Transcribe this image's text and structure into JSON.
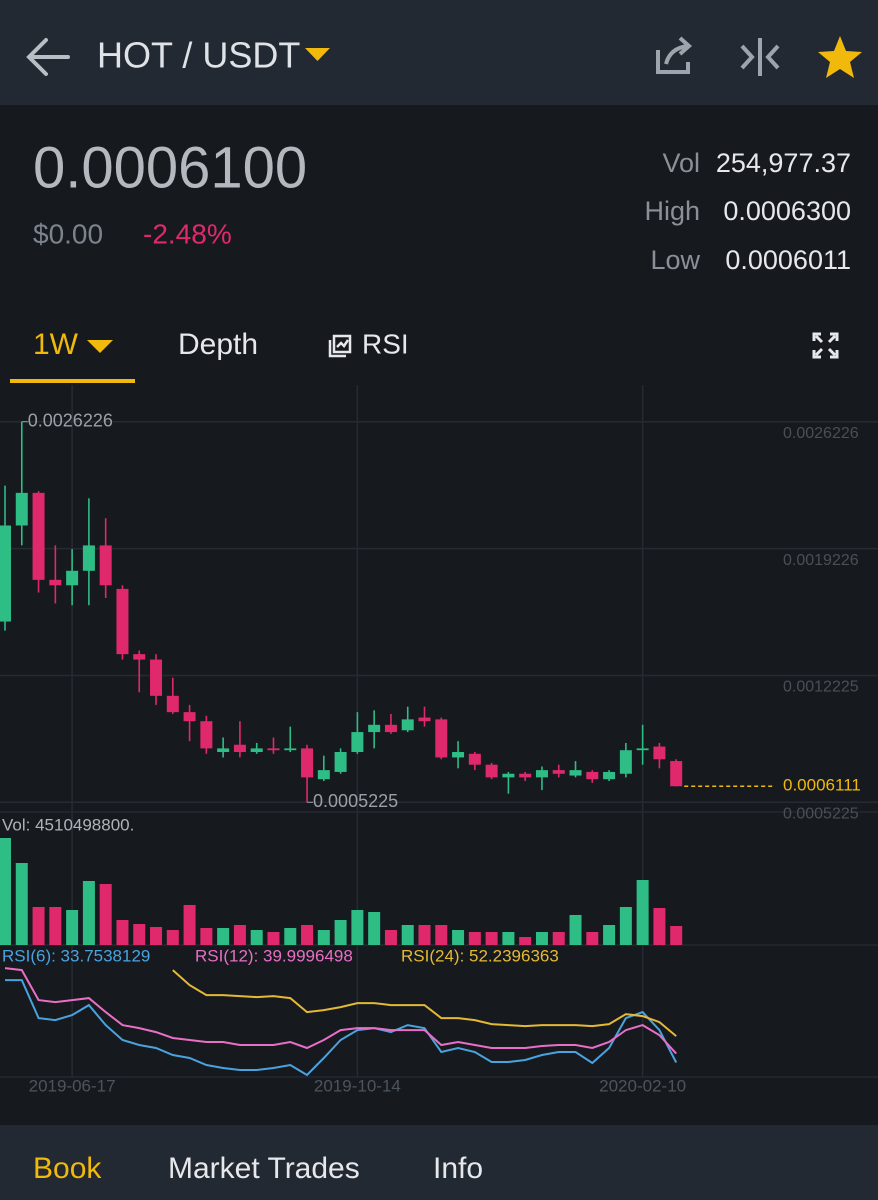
{
  "header": {
    "title": "HOT / USDT"
  },
  "ticker": {
    "price": "0.0006100",
    "fiat": "$0.00",
    "change": "-2.48%",
    "stats": [
      {
        "label": "Vol",
        "value": "254,977.37"
      },
      {
        "label": "High",
        "value": "0.0006300"
      },
      {
        "label": "Low",
        "value": "0.0006011"
      }
    ]
  },
  "tabs": [
    "1W",
    "Depth",
    "RSI"
  ],
  "footer_tabs": [
    "Book",
    "Market Trades",
    "Info"
  ],
  "chart_data": {
    "type": "candlestick",
    "x": [
      null,
      null,
      null,
      null,
      "2019-06-17",
      null,
      null,
      null,
      null,
      null,
      null,
      null,
      null,
      null,
      null,
      null,
      null,
      null,
      null,
      null,
      null,
      "2019-10-14",
      null,
      null,
      null,
      null,
      null,
      null,
      null,
      null,
      null,
      null,
      null,
      null,
      null,
      null,
      null,
      null,
      "2020-02-10",
      null,
      null
    ],
    "open": [
      0.00152,
      0.00205,
      0.00223,
      0.00175,
      0.00172,
      0.0018,
      0.00194,
      0.0017,
      0.00134,
      0.00131,
      0.00111,
      0.00102,
      0.00097,
      0.0008,
      0.00084,
      0.0008,
      0.00082,
      0.00081,
      0.00082,
      0.00065,
      0.00069,
      0.0008,
      0.00091,
      0.00095,
      0.00092,
      0.00099,
      0.00098,
      0.00077,
      0.00079,
      0.00073,
      0.00066,
      0.00068,
      0.00066,
      0.0007,
      0.00067,
      0.00069,
      0.00065,
      0.00068,
      0.00081,
      0.00083,
      0.00075
    ],
    "high": [
      0.00227,
      0.0026226,
      0.00224,
      0.00194,
      0.00192,
      0.0022,
      0.00209,
      0.00172,
      0.00136,
      0.00134,
      0.00121,
      0.00106,
      0.001,
      0.00088,
      0.00097,
      0.00085,
      0.00088,
      0.00094,
      0.00084,
      0.00078,
      0.00082,
      0.00102,
      0.00103,
      0.00101,
      0.00105,
      0.00105,
      0.00099,
      0.00086,
      0.0008,
      0.00074,
      0.00069,
      0.00069,
      0.00072,
      0.00073,
      0.00075,
      0.0007,
      0.0007,
      0.00085,
      0.00095,
      0.00085,
      0.00076
    ],
    "low": [
      0.00147,
      0.00194,
      0.00168,
      0.00162,
      0.00161,
      0.00161,
      0.00165,
      0.00131,
      0.00113,
      0.00106,
      0.00101,
      0.00086,
      0.00079,
      0.00077,
      0.00077,
      0.00079,
      0.00079,
      0.0008,
      0.0005225,
      0.00064,
      0.00068,
      0.00079,
      0.00082,
      0.0009,
      0.00091,
      0.00094,
      0.00076,
      0.00071,
      0.0007,
      0.00065,
      0.00057,
      0.00064,
      0.00059,
      0.00066,
      0.00066,
      0.00063,
      0.00064,
      0.00066,
      0.00073,
      0.00071,
      0.00061
    ],
    "close": [
      0.00205,
      0.00223,
      0.00175,
      0.00172,
      0.0018,
      0.00194,
      0.00172,
      0.00134,
      0.00131,
      0.00111,
      0.00102,
      0.00097,
      0.00082,
      0.00082,
      0.0008,
      0.00082,
      0.00081,
      0.00082,
      0.00066,
      0.0007,
      0.0008,
      0.00091,
      0.00095,
      0.00091,
      0.00098,
      0.00097,
      0.00077,
      0.0008,
      0.00073,
      0.00066,
      0.00068,
      0.00066,
      0.0007,
      0.00068,
      0.0007,
      0.00065,
      0.00069,
      0.00081,
      0.00082,
      0.00076,
      0.0006111
    ],
    "up_color": "#2ebd85",
    "down_color": "#e0296c",
    "ylim": [
      0.00048,
      0.00277
    ],
    "yticks": [
      0.0026226,
      0.0019226,
      0.0012225,
      0.0005225
    ],
    "grid": true,
    "last_price": 0.0006111,
    "last_color": "#f0b90b",
    "volume": {
      "label": "Vol: 4510498800.",
      "values": [
        4510498800,
        3456000000,
        1602000000,
        1602000000,
        1475000000,
        2698000000,
        2571000000,
        1054000000,
        885000000,
        759000000,
        632000000,
        1686000000,
        717000000,
        717000000,
        843000000,
        632000000,
        548000000,
        717000000,
        843000000,
        632000000,
        1054000000,
        1475000000,
        1391000000,
        632000000,
        843000000,
        843000000,
        843000000,
        632000000,
        548000000,
        548000000,
        548000000,
        337000000,
        548000000,
        548000000,
        1265000000,
        548000000,
        843000000,
        1602000000,
        2740000000,
        1560000000,
        801000000
      ]
    },
    "rsi": {
      "ylim": [
        25,
        100
      ],
      "series": [
        {
          "name": "RSI(6): 33.7538129",
          "color": "#4aa3df",
          "values": [
            91.5,
            91.5,
            64.9,
            63.5,
            67,
            74,
            60,
            49.5,
            46,
            43.9,
            39,
            36.9,
            32,
            29.9,
            28.5,
            28.5,
            29.9,
            32,
            25,
            36.9,
            49.5,
            56.5,
            57.9,
            55.1,
            60,
            57.9,
            41.1,
            43.9,
            41.1,
            34.1,
            34.1,
            35.5,
            39,
            41.1,
            41.1,
            33.4,
            43.9,
            64.9,
            69.1,
            56.5,
            33.7538129
          ]
        },
        {
          "name": "RSI(12): 39.9996498",
          "color": "#e86fc6",
          "values": [
            99.9,
            98.5,
            77.5,
            76.1,
            77.5,
            78.9,
            69.1,
            60,
            57.9,
            55.1,
            50.9,
            49.5,
            48.1,
            48.1,
            46,
            46,
            46,
            48.1,
            43.9,
            49.5,
            56.5,
            57.9,
            57.9,
            56.5,
            56.5,
            56.5,
            46,
            48.1,
            46,
            43.9,
            43.9,
            43.9,
            45.3,
            46,
            46,
            43.9,
            48.1,
            56.5,
            60,
            53,
            39.9996498
          ]
        },
        {
          "name": "RSI(24): 52.2396363",
          "color": "#e5b935",
          "values": [
            null,
            null,
            null,
            null,
            null,
            null,
            null,
            null,
            null,
            null,
            98.5,
            88,
            81,
            81,
            80.3,
            79.6,
            80.3,
            78.9,
            69.1,
            70.5,
            72.6,
            75.4,
            75.4,
            74,
            74,
            74,
            64.9,
            64.9,
            63.5,
            60.7,
            60,
            59.3,
            60,
            60,
            60,
            59.3,
            60.7,
            67.7,
            66.3,
            62.1,
            52.2396363
          ]
        }
      ]
    }
  }
}
